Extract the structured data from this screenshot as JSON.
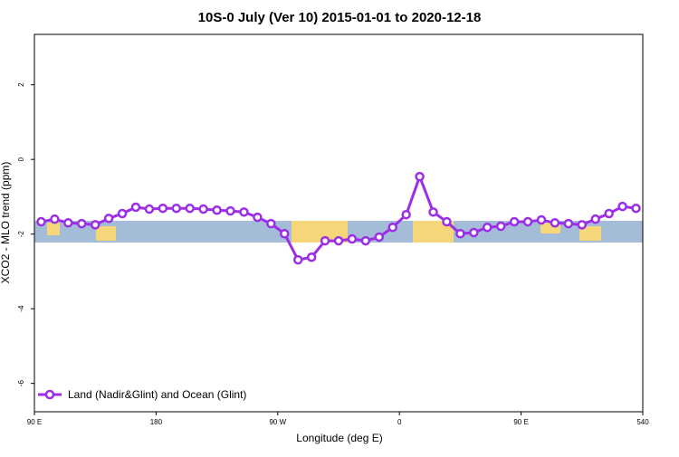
{
  "chart_data": {
    "type": "line",
    "title": "10S-0 July (Ver 10)   2015-01-01 to 2020-12-18",
    "x_label": "Longitude (deg E)",
    "y_label": "XCO2 - MLO trend (ppm)",
    "x": [
      95,
      105,
      115,
      125,
      135,
      145,
      155,
      165,
      175,
      185,
      195,
      205,
      215,
      225,
      235,
      245,
      255,
      265,
      275,
      285,
      295,
      305,
      315,
      325,
      335,
      345,
      355,
      365,
      375,
      385,
      395,
      405,
      415,
      425,
      435,
      445,
      455,
      465,
      475,
      485,
      495,
      505,
      515,
      525,
      535
    ],
    "series": [
      {
        "name": "Land (Nadir&Glint) and Ocean (Glint)",
        "color": "#9b2ee6",
        "values": [
          -1.67,
          -1.6,
          -1.7,
          -1.72,
          -1.75,
          -1.58,
          -1.45,
          -1.28,
          -1.33,
          -1.31,
          -1.31,
          -1.31,
          -1.33,
          -1.36,
          -1.38,
          -1.41,
          -1.55,
          -1.72,
          -1.99,
          -2.69,
          -2.62,
          -2.18,
          -2.18,
          -2.13,
          -2.18,
          -2.08,
          -1.82,
          -1.48,
          -0.46,
          -1.41,
          -1.67,
          -1.99,
          -1.96,
          -1.82,
          -1.79,
          -1.67,
          -1.67,
          -1.62,
          -1.7,
          -1.72,
          -1.75,
          -1.6,
          -1.45,
          -1.26,
          -1.31
        ]
      }
    ],
    "xlim": [
      90,
      540
    ],
    "xticks": [
      {
        "value": 90,
        "label": "90 E"
      },
      180,
      {
        "value": 270,
        "label": "90 W"
      },
      {
        "value": 360,
        "label": "0"
      },
      {
        "value": 450,
        "label": "90 E"
      },
      540
    ],
    "ylim": [
      -6.76,
      3.35
    ],
    "yticks": [
      -6,
      -4,
      -2,
      0,
      2
    ],
    "legend": "bottom-left"
  }
}
